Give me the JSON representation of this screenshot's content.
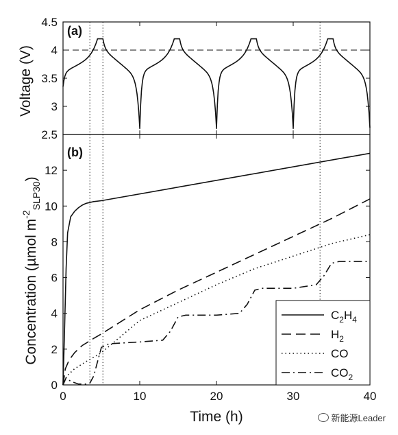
{
  "chart_data": [
    {
      "type": "line",
      "panel_label": "(a)",
      "xlim": [
        0,
        40
      ],
      "ylim": [
        2.5,
        4.5
      ],
      "yticks": [
        "2.5",
        "3",
        "3.5",
        "4",
        "4.5"
      ],
      "ylabel": "Voltage (V)",
      "reference_line": {
        "y": 4.0,
        "style": "dashed"
      },
      "cycles": [
        {
          "charge_start": 0,
          "cv_start": 4.5,
          "cv_end": 5.2,
          "discharge_end": 10
        },
        {
          "charge_start": 10,
          "cv_start": 14.5,
          "cv_end": 15.2,
          "discharge_end": 20
        },
        {
          "charge_start": 20,
          "cv_start": 24.5,
          "cv_end": 25.2,
          "discharge_end": 30
        },
        {
          "charge_start": 30,
          "cv_start": 34.5,
          "cv_end": 35.2,
          "discharge_end": 40
        }
      ],
      "v_min": 2.6,
      "v_max": 4.2,
      "vertical_markers_h": [
        3.5,
        5.2,
        33.5
      ]
    },
    {
      "type": "line",
      "panel_label": "(b)",
      "xlim": [
        0,
        40
      ],
      "ylim": [
        0,
        14
      ],
      "xticks": [
        "0",
        "10",
        "20",
        "30",
        "40"
      ],
      "yticks": [
        "0",
        "2",
        "4",
        "6",
        "8",
        "10",
        "12"
      ],
      "xlabel": "Time (h)",
      "ylabel": "Concentration (µmol m",
      "ylabel_sup": "-2",
      "ylabel_sub": "SLP30",
      "ylabel_close": ")",
      "legend_position": "bottom-right",
      "series": [
        {
          "name": "C",
          "sub1": "2",
          "mid": "H",
          "sub2": "4",
          "style": "solid",
          "points": [
            [
              0,
              0
            ],
            [
              0.2,
              3
            ],
            [
              0.4,
              6.5
            ],
            [
              0.6,
              8.5
            ],
            [
              1,
              9.4
            ],
            [
              1.5,
              9.7
            ],
            [
              2,
              9.9
            ],
            [
              2.5,
              10.05
            ],
            [
              3,
              10.15
            ],
            [
              4,
              10.25
            ],
            [
              5,
              10.3
            ],
            [
              40,
              12.95
            ]
          ]
        },
        {
          "name": "H",
          "sub1": "2",
          "mid": "",
          "sub2": "",
          "style": "dashed",
          "points": [
            [
              0,
              0
            ],
            [
              0.3,
              0.9
            ],
            [
              0.8,
              1.4
            ],
            [
              1.5,
              1.8
            ],
            [
              2.5,
              2.2
            ],
            [
              4,
              2.6
            ],
            [
              5,
              2.85
            ],
            [
              10,
              4.2
            ],
            [
              15,
              5.3
            ],
            [
              20,
              6.3
            ],
            [
              25,
              7.3
            ],
            [
              30,
              8.3
            ],
            [
              35,
              9.3
            ],
            [
              40,
              10.4
            ]
          ]
        },
        {
          "name": "CO",
          "sub1": "",
          "mid": "",
          "sub2": "",
          "style": "dotted",
          "points": [
            [
              0,
              0
            ],
            [
              0.5,
              0.5
            ],
            [
              1.5,
              0.9
            ],
            [
              3,
              1.3
            ],
            [
              5,
              1.8
            ],
            [
              10,
              3.6
            ],
            [
              15,
              4.6
            ],
            [
              20,
              5.6
            ],
            [
              25,
              6.5
            ],
            [
              30,
              7.2
            ],
            [
              35,
              7.9
            ],
            [
              40,
              8.4
            ]
          ]
        },
        {
          "name": "CO",
          "sub1": "2",
          "mid": "",
          "sub2": "",
          "style": "dashdot",
          "points": [
            [
              0,
              0
            ],
            [
              0.4,
              0.4
            ],
            [
              1,
              0.2
            ],
            [
              2,
              0.05
            ],
            [
              3,
              0.05
            ],
            [
              3.5,
              0.1
            ],
            [
              4,
              0.5
            ],
            [
              4.5,
              1.3
            ],
            [
              5,
              2.1
            ],
            [
              6,
              2.3
            ],
            [
              10,
              2.4
            ],
            [
              13,
              2.5
            ],
            [
              14,
              3.0
            ],
            [
              15,
              3.8
            ],
            [
              16,
              3.9
            ],
            [
              20,
              3.9
            ],
            [
              23,
              4.0
            ],
            [
              24,
              4.5
            ],
            [
              25,
              5.3
            ],
            [
              26,
              5.4
            ],
            [
              30,
              5.4
            ],
            [
              33,
              5.6
            ],
            [
              34,
              6.1
            ],
            [
              35,
              6.8
            ],
            [
              36,
              6.9
            ],
            [
              40,
              6.9
            ]
          ]
        }
      ],
      "vertical_markers_h": [
        3.5,
        5.2,
        33.5
      ]
    }
  ],
  "watermark": {
    "text": "新能源Leader"
  }
}
